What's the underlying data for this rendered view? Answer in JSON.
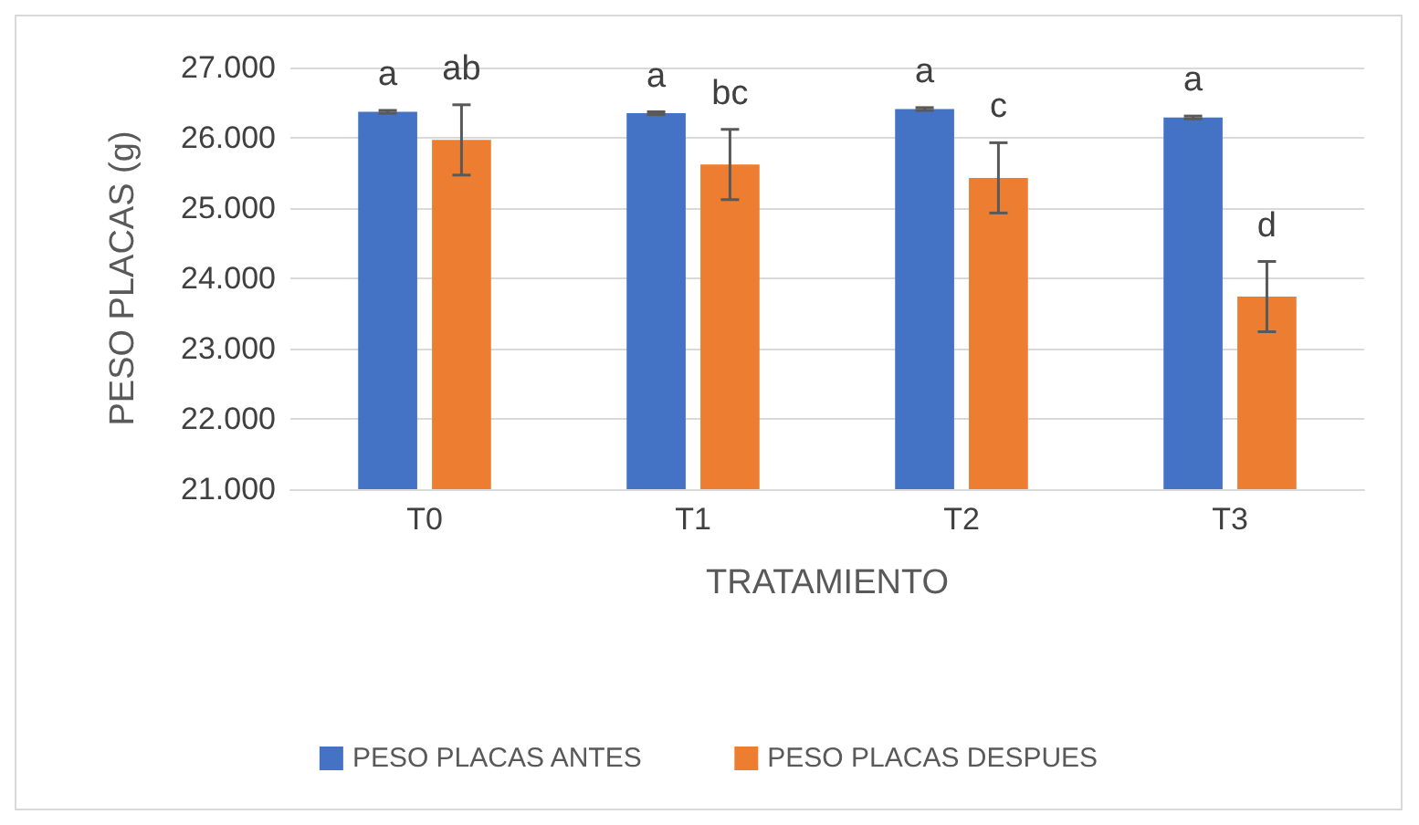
{
  "chart_data": {
    "type": "bar",
    "xlabel": "TRATAMIENTO",
    "ylabel": "PESO PLACAS (g)",
    "categories": [
      "T0",
      "T1",
      "T2",
      "T3"
    ],
    "series": [
      {
        "name": "PESO PLACAS ANTES",
        "color": "#4472c4",
        "values": [
          26370,
          26350,
          26410,
          26290
        ],
        "errors": [
          20,
          20,
          20,
          20
        ]
      },
      {
        "name": "PESO PLACAS DESPUES",
        "color": "#ed7d31",
        "values": [
          25970,
          25620,
          25430,
          23740
        ],
        "errors": [
          500,
          500,
          500,
          500
        ]
      }
    ],
    "ylim": [
      21000,
      27000
    ],
    "yticks": [
      {
        "value": 21000,
        "label": "21.000"
      },
      {
        "value": 22000,
        "label": "22.000"
      },
      {
        "value": 23000,
        "label": "23.000"
      },
      {
        "value": 24000,
        "label": "24.000"
      },
      {
        "value": 25000,
        "label": "25.000"
      },
      {
        "value": 26000,
        "label": "26.000"
      },
      {
        "value": 27000,
        "label": "27.000"
      }
    ],
    "grid": "y",
    "legend": "bottom",
    "annotations": [
      "a",
      "ab",
      "a",
      "bc",
      "a",
      "c",
      "a",
      "d"
    ]
  }
}
